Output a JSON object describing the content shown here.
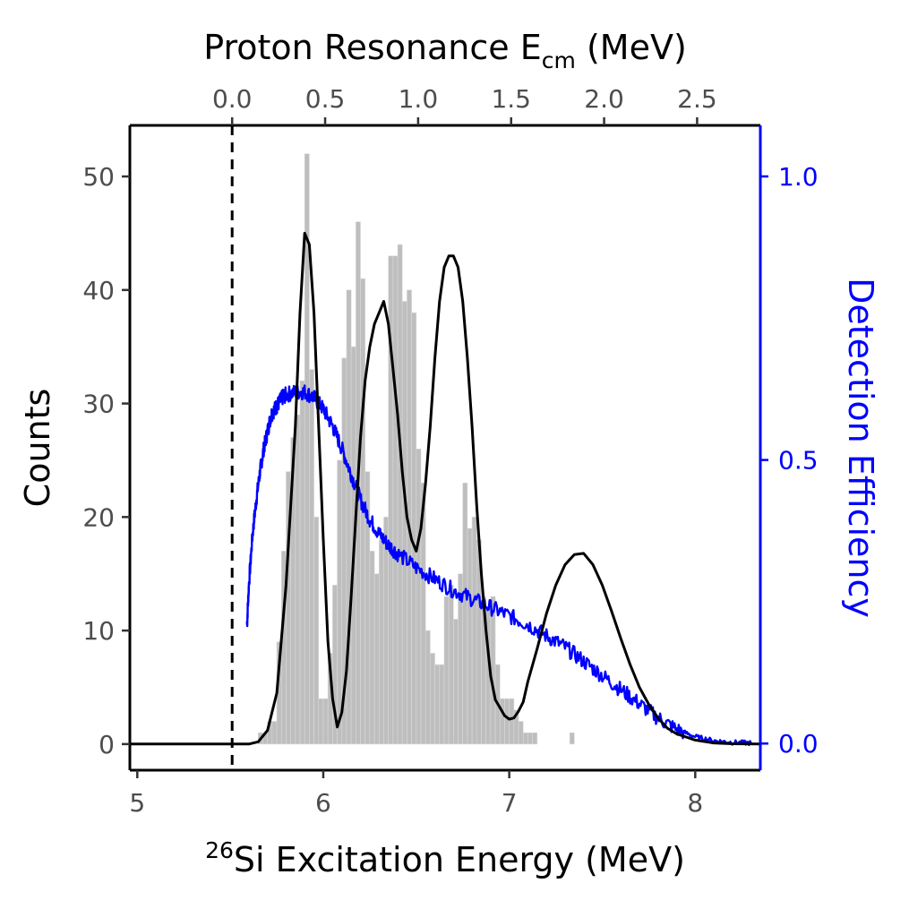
{
  "chart_data": {
    "type": "bar",
    "xlabel_sup": "26",
    "xlabel": "Si Excitation Energy (MeV)",
    "ylabel": "Counts",
    "y2label": "Detection Efficiency",
    "x2label": "Proton Resonance E",
    "x2label_sub": "cm",
    "x2label_end": " (MeV)",
    "xlim": [
      4.96,
      8.35
    ],
    "ylim": [
      -2.3,
      54.5
    ],
    "y2lim": [
      -0.047,
      1.09
    ],
    "x_ticks": [
      5,
      6,
      7,
      8
    ],
    "x_tick_labels": [
      "5",
      "6",
      "7",
      "8"
    ],
    "y_ticks": [
      0,
      10,
      20,
      30,
      40,
      50
    ],
    "y_tick_labels": [
      "0",
      "10",
      "20",
      "30",
      "40",
      "50"
    ],
    "y2_ticks": [
      0.0,
      0.5,
      1.0
    ],
    "y2_tick_labels": [
      "0.0",
      "0.5",
      "1.0"
    ],
    "x2_ticks": [
      0.0,
      0.5,
      1.0,
      1.5,
      2.0,
      2.5
    ],
    "x2_tick_labels": [
      "0.0",
      "0.5",
      "1.0",
      "1.5",
      "2.0",
      "2.5"
    ],
    "proton_threshold": 5.51,
    "histogram": {
      "bin_start": 5.65,
      "bin_width": 0.025,
      "counts": [
        1,
        1,
        2,
        2,
        9,
        17,
        24,
        27,
        29,
        32,
        52,
        33,
        20,
        4,
        4,
        8,
        14,
        25,
        34,
        40,
        35,
        46,
        41,
        24,
        17,
        15,
        18,
        20,
        43,
        43,
        44,
        39,
        40,
        38,
        26,
        23,
        10,
        8,
        7,
        7,
        13,
        14,
        11,
        15,
        23,
        19,
        20,
        18,
        13,
        12,
        13,
        7,
        4,
        4,
        4,
        3,
        2,
        1,
        1,
        1,
        0,
        0,
        0,
        0,
        0,
        0,
        0,
        1
      ]
    },
    "series": [
      {
        "role": "fit",
        "color": "#000000",
        "x": [
          4.96,
          5.5,
          5.55,
          5.6,
          5.65,
          5.7,
          5.75,
          5.8,
          5.85,
          5.875,
          5.9,
          5.925,
          5.95,
          5.975,
          6.0,
          6.025,
          6.05,
          6.075,
          6.1,
          6.125,
          6.15,
          6.175,
          6.2,
          6.225,
          6.25,
          6.275,
          6.3,
          6.325,
          6.35,
          6.375,
          6.4,
          6.425,
          6.45,
          6.475,
          6.5,
          6.525,
          6.55,
          6.575,
          6.6,
          6.625,
          6.65,
          6.675,
          6.7,
          6.725,
          6.75,
          6.775,
          6.8,
          6.825,
          6.85,
          6.875,
          6.9,
          6.925,
          6.95,
          6.975,
          7.0,
          7.025,
          7.05,
          7.075,
          7.1,
          7.15,
          7.2,
          7.25,
          7.3,
          7.35,
          7.4,
          7.45,
          7.5,
          7.55,
          7.6,
          7.65,
          7.7,
          7.75,
          7.8,
          7.85,
          7.9,
          8.0,
          8.1,
          8.2,
          8.35
        ],
        "y": [
          0,
          0,
          0,
          0,
          0.2,
          1.2,
          4.5,
          14,
          28,
          38,
          45,
          44,
          38,
          28,
          18,
          9,
          4,
          1.5,
          2.8,
          6.5,
          13,
          20,
          27,
          32,
          35,
          37,
          38,
          39,
          37,
          33,
          29,
          24,
          20,
          18,
          17,
          19,
          23,
          28,
          34,
          39,
          42,
          43,
          43,
          42,
          39,
          34,
          28,
          21,
          15,
          10,
          6,
          3.9,
          3.2,
          2.5,
          2.2,
          2.3,
          2.9,
          3.7,
          5.5,
          8.4,
          11.5,
          14,
          15.8,
          16.7,
          16.8,
          15.8,
          14,
          11.7,
          9.3,
          7,
          5,
          3.5,
          2.3,
          1.4,
          0.9,
          0.35,
          0.1,
          0.03,
          0
        ]
      },
      {
        "role": "efficiency",
        "color": "#0000ff",
        "x": [
          5.59,
          5.6,
          5.62,
          5.64,
          5.66,
          5.68,
          5.7,
          5.72,
          5.74,
          5.76,
          5.78,
          5.8,
          5.85,
          5.9,
          5.95,
          6.0,
          6.05,
          6.1,
          6.15,
          6.2,
          6.25,
          6.3,
          6.35,
          6.4,
          6.5,
          6.6,
          6.7,
          6.8,
          6.9,
          7.0,
          7.1,
          7.2,
          7.3,
          7.4,
          7.5,
          7.6,
          7.7,
          7.8,
          7.9,
          8.0,
          8.1,
          8.2,
          8.3
        ],
        "y": [
          0.21,
          0.28,
          0.37,
          0.43,
          0.48,
          0.52,
          0.55,
          0.58,
          0.59,
          0.6,
          0.61,
          0.615,
          0.62,
          0.62,
          0.61,
          0.59,
          0.56,
          0.52,
          0.475,
          0.43,
          0.395,
          0.37,
          0.35,
          0.335,
          0.31,
          0.29,
          0.27,
          0.255,
          0.24,
          0.225,
          0.21,
          0.19,
          0.17,
          0.145,
          0.12,
          0.095,
          0.07,
          0.045,
          0.025,
          0.012,
          0.005,
          0.002,
          0.001
        ]
      }
    ]
  }
}
